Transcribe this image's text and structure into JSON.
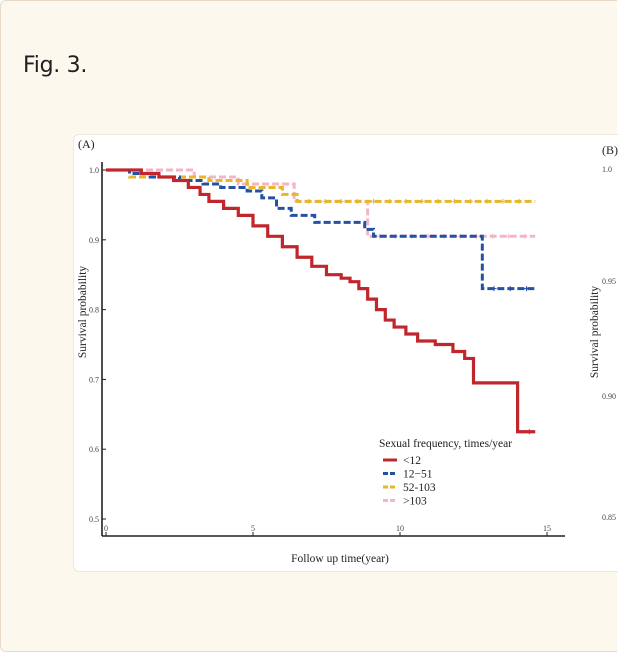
{
  "figure": {
    "title": "Fig. 3."
  },
  "panels": {
    "a_label": "(A)",
    "b_label": "(B)"
  },
  "chart_data": [
    {
      "panel": "A",
      "type": "line",
      "step": true,
      "xlabel": "Follow up time(year)",
      "ylabel": "Survival probability",
      "xlim": [
        0,
        15
      ],
      "ylim": [
        0.5,
        1.0
      ],
      "xticks": [
        "0",
        "5",
        "10",
        "15"
      ],
      "yticks": [
        "0.5",
        "0.6",
        "0.7",
        "0.8",
        "0.9",
        "1.0"
      ],
      "legend": {
        "title": "Sexual frequency, times/year",
        "position": "bottom-right"
      },
      "series": [
        {
          "name": "<12",
          "color": "#c0272d",
          "dash": "solid",
          "x": [
            0,
            1.2,
            1.8,
            2.3,
            2.8,
            3.2,
            3.5,
            4.0,
            4.5,
            5.0,
            5.5,
            6.0,
            6.5,
            7.0,
            7.5,
            8.0,
            8.3,
            8.6,
            8.9,
            9.2,
            9.5,
            9.8,
            10.2,
            10.6,
            11.2,
            11.8,
            12.2,
            12.5,
            14.0,
            14.6
          ],
          "y": [
            1.0,
            0.995,
            0.99,
            0.985,
            0.975,
            0.965,
            0.955,
            0.945,
            0.935,
            0.92,
            0.905,
            0.89,
            0.875,
            0.862,
            0.85,
            0.845,
            0.84,
            0.83,
            0.815,
            0.8,
            0.785,
            0.775,
            0.765,
            0.755,
            0.75,
            0.74,
            0.73,
            0.695,
            0.625,
            0.625
          ]
        },
        {
          "name": "12−51",
          "color": "#2451a3",
          "dash": "dash",
          "x": [
            0,
            0.8,
            1.5,
            2.5,
            3.3,
            3.9,
            4.8,
            5.3,
            5.8,
            6.3,
            7.1,
            8.8,
            9.1,
            12.8,
            14.6
          ],
          "y": [
            1.0,
            0.995,
            0.99,
            0.985,
            0.98,
            0.975,
            0.97,
            0.96,
            0.945,
            0.935,
            0.925,
            0.915,
            0.905,
            0.83,
            0.83
          ]
        },
        {
          "name": "52-103",
          "color": "#e8b62a",
          "dash": "dash",
          "x": [
            0,
            0.8,
            2.0,
            3.5,
            4.8,
            6.0,
            6.5,
            14.6
          ],
          "y": [
            1.0,
            0.99,
            0.99,
            0.985,
            0.975,
            0.965,
            0.955,
            0.955
          ]
        },
        {
          "name": ">103",
          "color": "#f4b6c6",
          "dash": "dash",
          "x": [
            0,
            2.5,
            3.0,
            4.5,
            6.4,
            8.6,
            8.9,
            14.6
          ],
          "y": [
            1.0,
            1.0,
            0.99,
            0.98,
            0.955,
            0.955,
            0.905,
            0.905
          ]
        }
      ]
    },
    {
      "panel": "B",
      "type": "line",
      "ylabel": "Survival probability",
      "yticks": [
        "1.0",
        "0.95",
        "0.90",
        "0.85"
      ]
    }
  ]
}
